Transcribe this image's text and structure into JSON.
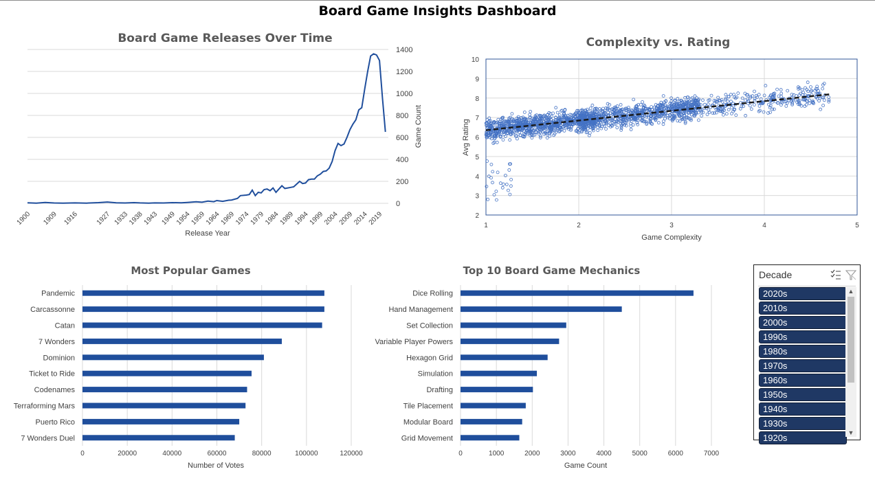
{
  "dashboard": {
    "title": "Board Game Insights Dashboard"
  },
  "colors": {
    "series": "#1f4e9c",
    "slicer_item": "#1f3864",
    "grid": "#d9d9d9"
  },
  "chart_data": [
    {
      "id": "releases",
      "type": "line",
      "title": "Board Game Releases Over Time",
      "xlabel": "Release Year",
      "ylabel": "Game Count",
      "ylim": [
        0,
        1400
      ],
      "yticks": [
        0,
        200,
        400,
        600,
        800,
        1000,
        1200,
        1400
      ],
      "xlim": [
        1900,
        2022
      ],
      "xticks": [
        1900,
        1909,
        1916,
        1927,
        1933,
        1938,
        1943,
        1949,
        1954,
        1959,
        1964,
        1969,
        1974,
        1979,
        1984,
        1989,
        1994,
        1999,
        2004,
        2009,
        2014,
        2019
      ],
      "x": [
        1900,
        1903,
        1906,
        1909,
        1912,
        1916,
        1920,
        1924,
        1927,
        1930,
        1933,
        1936,
        1938,
        1941,
        1943,
        1946,
        1949,
        1952,
        1954,
        1957,
        1959,
        1961,
        1963,
        1964,
        1966,
        1968,
        1969,
        1971,
        1972,
        1974,
        1975,
        1976,
        1977,
        1978,
        1979,
        1980,
        1981,
        1982,
        1983,
        1984,
        1985,
        1986,
        1987,
        1988,
        1989,
        1990,
        1991,
        1992,
        1993,
        1994,
        1995,
        1996,
        1997,
        1998,
        1999,
        2000,
        2001,
        2002,
        2003,
        2004,
        2005,
        2006,
        2007,
        2008,
        2009,
        2010,
        2011,
        2012,
        2013,
        2014,
        2015,
        2016,
        2017,
        2018,
        2019,
        2020,
        2021
      ],
      "y": [
        5,
        2,
        8,
        3,
        1,
        4,
        2,
        6,
        12,
        5,
        3,
        6,
        4,
        2,
        4,
        3,
        6,
        5,
        8,
        14,
        10,
        20,
        15,
        25,
        18,
        28,
        30,
        45,
        70,
        75,
        80,
        120,
        70,
        100,
        95,
        125,
        130,
        115,
        140,
        100,
        130,
        160,
        135,
        140,
        145,
        150,
        175,
        200,
        180,
        185,
        215,
        220,
        220,
        250,
        265,
        290,
        295,
        320,
        380,
        480,
        545,
        525,
        540,
        600,
        670,
        720,
        760,
        850,
        870,
        1040,
        1200,
        1340,
        1360,
        1350,
        1300,
        960,
        650
      ]
    },
    {
      "id": "complexity",
      "type": "scatter",
      "title": "Complexity vs. Rating",
      "xlabel": "Game Complexity",
      "ylabel": "Avg Rating",
      "xlim": [
        1,
        5
      ],
      "ylim": [
        2,
        10
      ],
      "xticks": [
        1,
        2,
        3,
        4,
        5
      ],
      "yticks": [
        2,
        3,
        4,
        5,
        6,
        7,
        8,
        9,
        10
      ],
      "trendline": {
        "x": [
          1,
          4.72
        ],
        "y": [
          6.35,
          8.2
        ]
      },
      "note_points": "approx. 2000 points, dense cluster, rating ≈ 6.35 + 0.5·(complexity−1), spread ±0.6"
    },
    {
      "id": "popular",
      "type": "bar",
      "orientation": "horizontal",
      "title": "Most Popular Games",
      "xlabel": "Number of Votes",
      "xlim": [
        0,
        120000
      ],
      "xticks": [
        0,
        20000,
        40000,
        60000,
        80000,
        100000,
        120000
      ],
      "categories": [
        "Pandemic",
        "Carcassonne",
        "Catan",
        "7 Wonders",
        "Dominion",
        "Ticket to Ride",
        "Codenames",
        "Terraforming Mars",
        "Puerto Rico",
        "7 Wonders Duel"
      ],
      "values": [
        108000,
        108000,
        107000,
        89000,
        81000,
        75500,
        73500,
        72800,
        70000,
        68000
      ]
    },
    {
      "id": "mechanics",
      "type": "bar",
      "orientation": "horizontal",
      "title": "Top 10 Board Game Mechanics",
      "xlabel": "Game Count",
      "xlim": [
        0,
        7000
      ],
      "xticks": [
        0,
        1000,
        2000,
        3000,
        4000,
        5000,
        6000,
        7000
      ],
      "categories": [
        "Dice Rolling",
        "Hand Management",
        "Set Collection",
        "Variable Player Powers",
        "Hexagon Grid",
        "Simulation",
        "Drafting",
        "Tile Placement",
        "Modular Board",
        "Grid Movement"
      ],
      "values": [
        6500,
        4500,
        2950,
        2750,
        2430,
        2130,
        2020,
        1820,
        1720,
        1640
      ]
    }
  ],
  "slicer": {
    "title": "Decade",
    "multiselect_icon": "multi-select-icon",
    "clear_icon": "clear-filter-icon",
    "items": [
      "2020s",
      "2010s",
      "2000s",
      "1990s",
      "1980s",
      "1970s",
      "1960s",
      "1950s",
      "1940s",
      "1930s",
      "1920s"
    ]
  }
}
